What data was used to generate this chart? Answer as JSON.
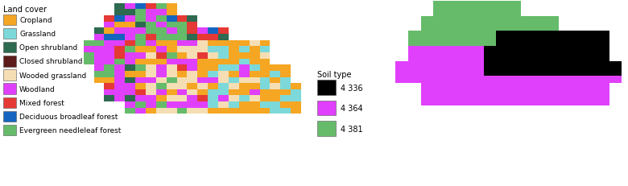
{
  "fig_width": 7.8,
  "fig_height": 2.32,
  "dpi": 100,
  "background_color": "#ffffff",
  "left_legend_title": "Land cover",
  "left_legend_items": [
    {
      "label": "Cropland",
      "color": "#f5a623"
    },
    {
      "label": "Grassland",
      "color": "#7dd9d9"
    },
    {
      "label": "Open shrubland",
      "color": "#2d6a4f"
    },
    {
      "label": "Closed shrubland",
      "color": "#5c1a1a"
    },
    {
      "label": "Wooded grassland",
      "color": "#f5deb3"
    },
    {
      "label": "Woodland",
      "color": "#e040fb"
    },
    {
      "label": "Mixed forest",
      "color": "#e53935"
    },
    {
      "label": "Deciduous broadleaf forest",
      "color": "#1565c0"
    },
    {
      "label": "Evergreen needleleaf forest",
      "color": "#66bb6a"
    }
  ],
  "right_legend_title": "Soil type",
  "right_legend_items": [
    {
      "label": "4 336",
      "color": "#000000"
    },
    {
      "label": "4 364",
      "color": "#e040fb"
    },
    {
      "label": "4 381",
      "color": "#66bb6a"
    }
  ],
  "font_size_legend_title": 7,
  "font_size_legend_items": 6.5,
  "font_family": "DejaVu Sans"
}
